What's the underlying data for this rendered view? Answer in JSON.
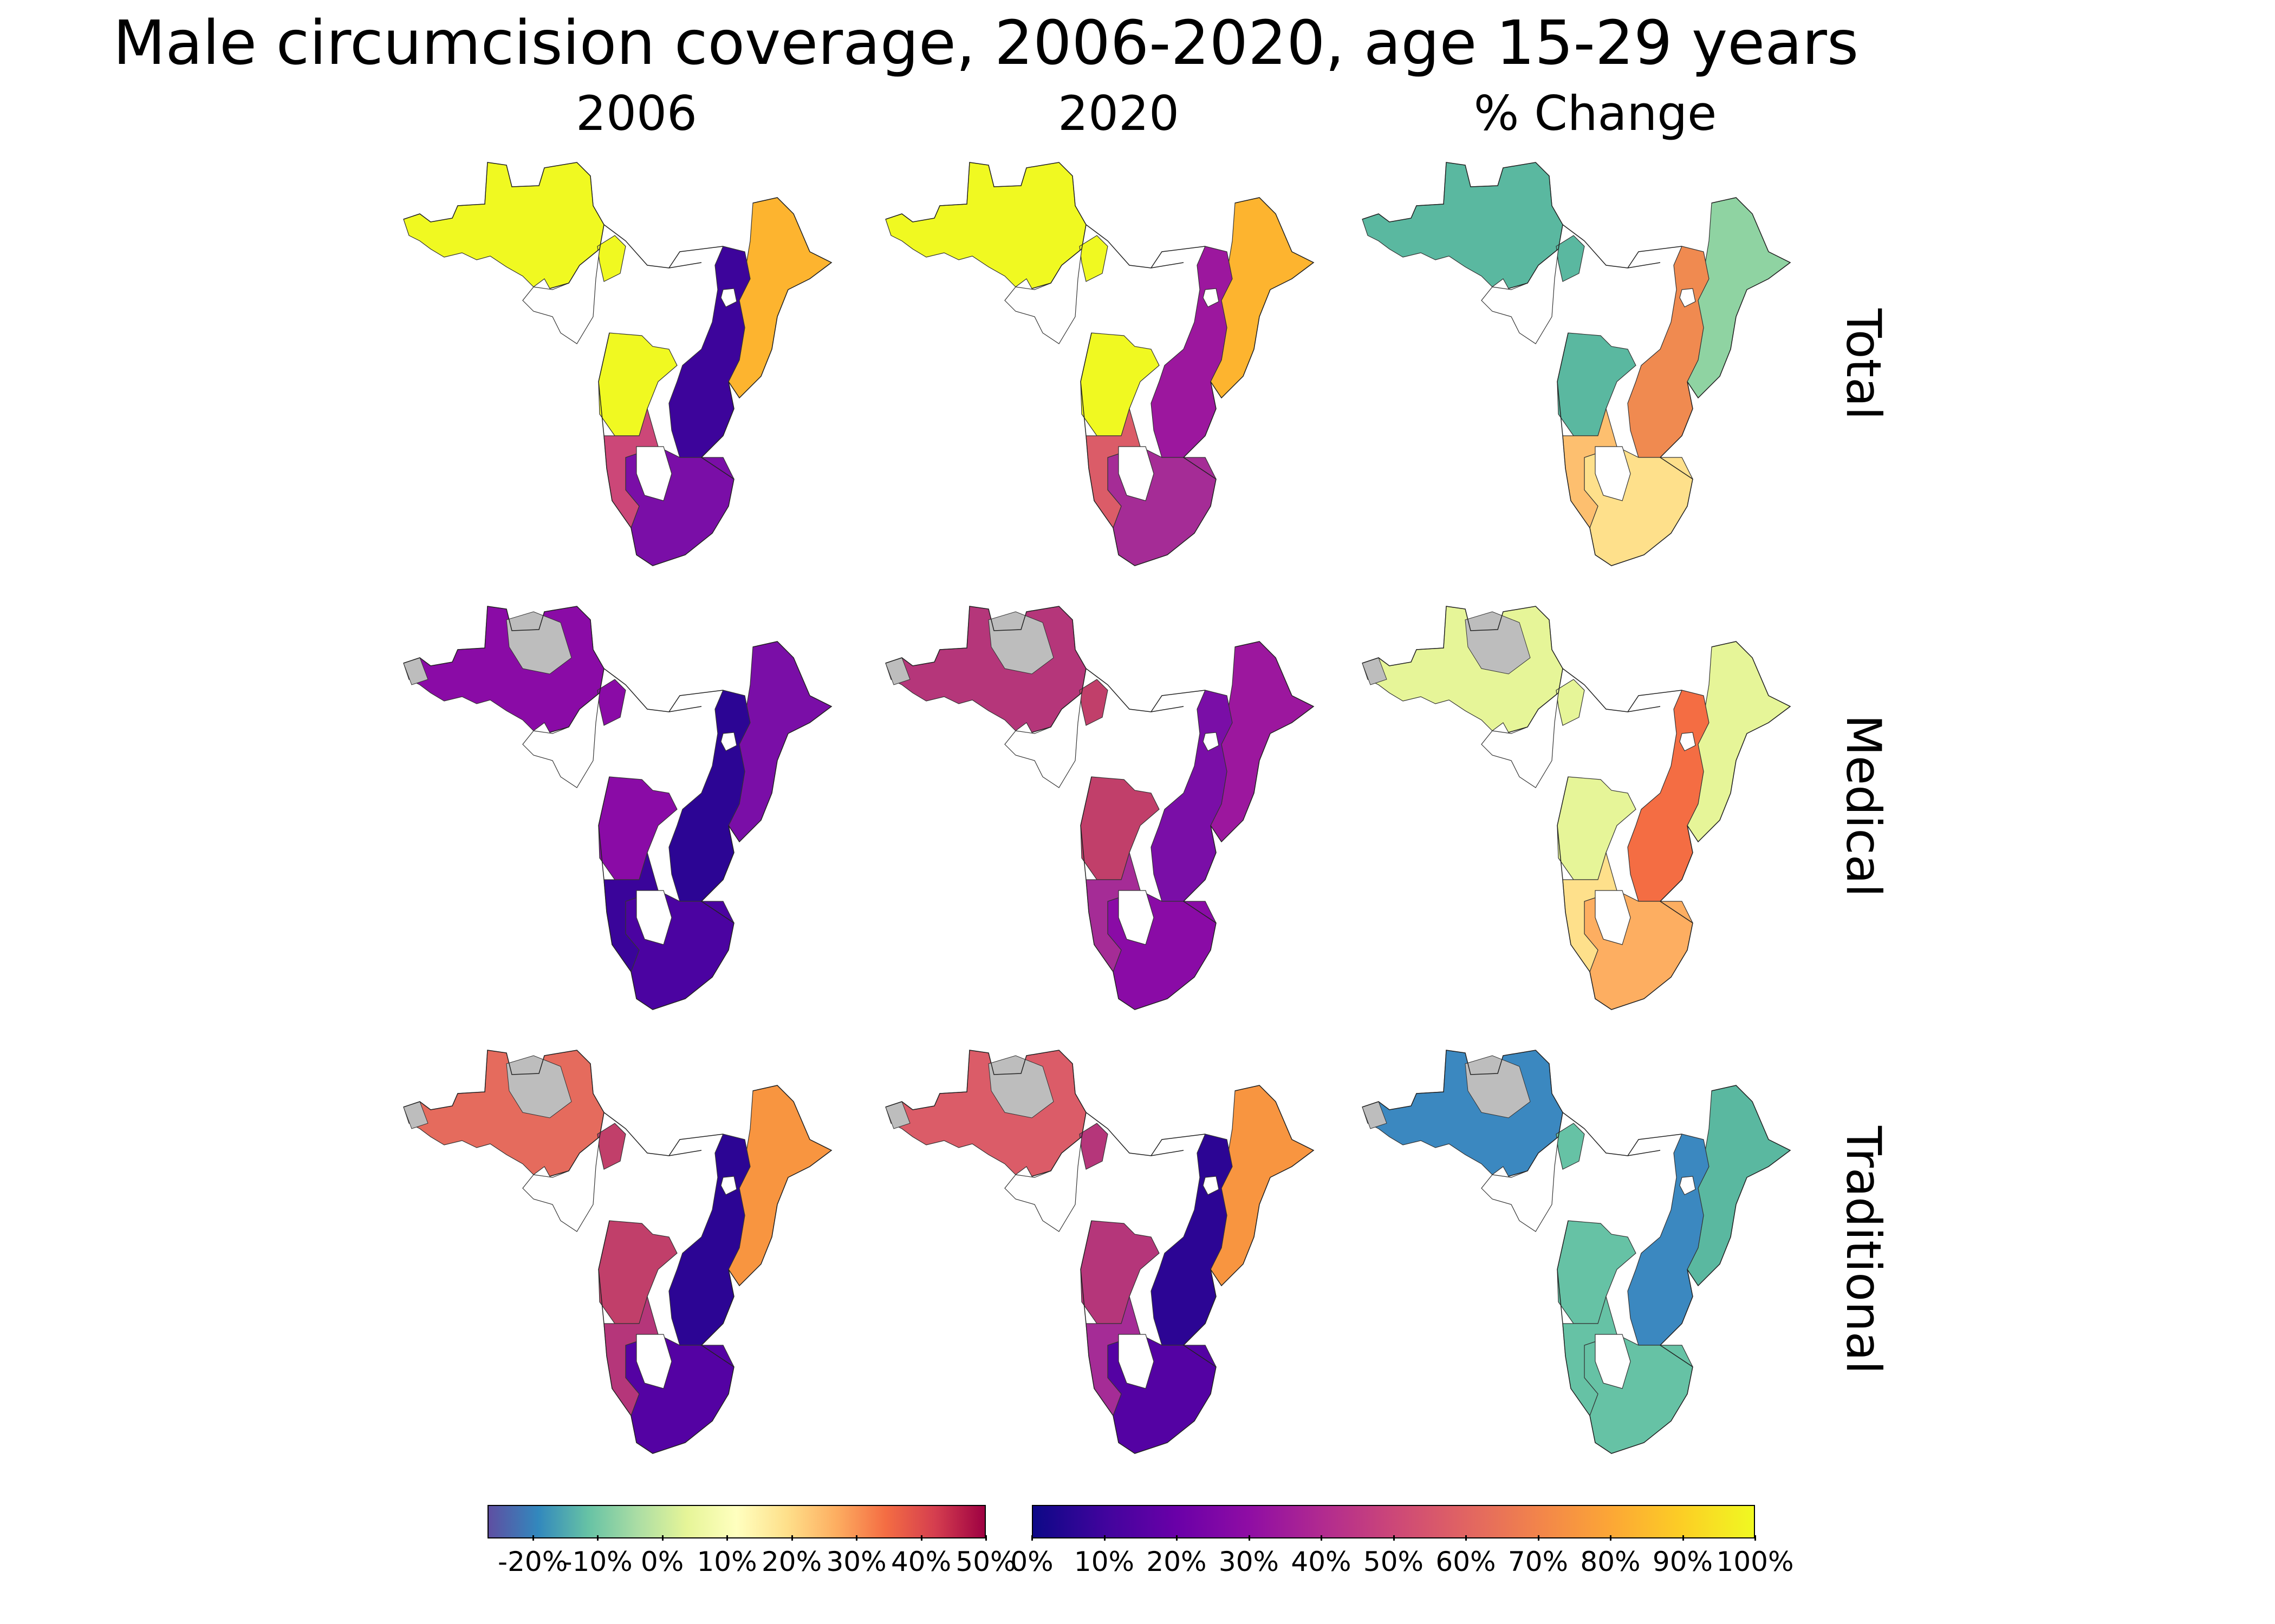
{
  "title": "Male circumcision coverage, 2006-2020, age 15-29 years",
  "columns": [
    "2006",
    "2020",
    "% Change"
  ],
  "rows": [
    "Total",
    "Medical",
    "Traditional"
  ],
  "panels": [
    {
      "row": "Total",
      "column": "2006",
      "palette": "plasma",
      "region_fill": {
        "west_africa": "#f0f921",
        "central_south": "#f0f921",
        "east_coast": "#fdb42f",
        "great_lakes_zambezi": "#3d049b",
        "southern_africa": "#7a0ea7",
        "namibia_botswana": "#cc4778",
        "no_data": "#bdbdbd"
      }
    },
    {
      "row": "Total",
      "column": "2020",
      "palette": "plasma",
      "region_fill": {
        "west_africa": "#f0f921",
        "central_south": "#f0f921",
        "east_coast": "#fdb42f",
        "great_lakes_zambezi": "#9c179e",
        "southern_africa": "#a52c96",
        "namibia_botswana": "#db5c68",
        "no_data": "#bdbdbd"
      }
    },
    {
      "row": "Total",
      "column": "% Change",
      "palette": "spectral",
      "region_fill": {
        "west_africa": "#5ab8a0",
        "central_south": "#5ab8a0",
        "east_coast": "#8fd3a2",
        "great_lakes_zambezi": "#f08a50",
        "southern_africa": "#fee08b",
        "namibia_botswana": "#fdbf6f",
        "no_data": "#bdbdbd"
      }
    },
    {
      "row": "Medical",
      "column": "2006",
      "palette": "plasma",
      "region_fill": {
        "west_africa": "#8a0ba6",
        "central_south": "#8a0ba6",
        "east_coast": "#7a0ea7",
        "great_lakes_zambezi": "#2c0594",
        "southern_africa": "#4b03a1",
        "namibia_botswana": "#3a049a",
        "no_data": "#bdbdbd"
      }
    },
    {
      "row": "Medical",
      "column": "2020",
      "palette": "plasma",
      "region_fill": {
        "west_africa": "#b5367a",
        "central_south": "#c13f6a",
        "east_coast": "#9c179e",
        "great_lakes_zambezi": "#7a0ea7",
        "southern_africa": "#8a0ba6",
        "namibia_botswana": "#a52c96",
        "no_data": "#bdbdbd"
      }
    },
    {
      "row": "Medical",
      "column": "% Change",
      "palette": "spectral",
      "region_fill": {
        "west_africa": "#e6f598",
        "central_south": "#e6f598",
        "east_coast": "#e6f598",
        "great_lakes_zambezi": "#f46d43",
        "southern_africa": "#fdae61",
        "namibia_botswana": "#fee08b",
        "no_data": "#bdbdbd"
      }
    },
    {
      "row": "Traditional",
      "column": "2006",
      "palette": "plasma",
      "region_fill": {
        "west_africa": "#e56b5d",
        "central_south": "#c13f6a",
        "east_coast": "#f89540",
        "great_lakes_zambezi": "#2c0594",
        "southern_africa": "#5402a3",
        "namibia_botswana": "#b5367a",
        "no_data": "#bdbdbd"
      }
    },
    {
      "row": "Traditional",
      "column": "2020",
      "palette": "plasma",
      "region_fill": {
        "west_africa": "#db5c68",
        "central_south": "#b5367a",
        "east_coast": "#f89540",
        "great_lakes_zambezi": "#2c0594",
        "southern_africa": "#5402a3",
        "namibia_botswana": "#a52c96",
        "no_data": "#bdbdbd"
      }
    },
    {
      "row": "Traditional",
      "column": "% Change",
      "palette": "spectral",
      "region_fill": {
        "west_africa": "#3b88c0",
        "central_south": "#66c2a5",
        "east_coast": "#5ab8a0",
        "great_lakes_zambezi": "#3b88c0",
        "southern_africa": "#66c2a5",
        "namibia_botswana": "#66c2a5",
        "no_data": "#bdbdbd"
      }
    }
  ],
  "colorbars": [
    {
      "name": "change",
      "palette": "spectral",
      "ticks": [
        "-20%",
        "-10%",
        "0%",
        "10%",
        "20%",
        "30%",
        "40%",
        "50%"
      ],
      "tick_values": [
        -20,
        -10,
        0,
        10,
        20,
        30,
        40,
        50
      ],
      "range": [
        -27,
        50
      ],
      "colors": [
        "#5e4fa2",
        "#3288bd",
        "#66c2a5",
        "#abdda4",
        "#e6f598",
        "#ffffbf",
        "#fee08b",
        "#fdae61",
        "#f46d43",
        "#d53e4f",
        "#9e0142"
      ]
    },
    {
      "name": "coverage",
      "palette": "plasma",
      "ticks": [
        "0%",
        "10%",
        "20%",
        "30%",
        "40%",
        "50%",
        "60%",
        "70%",
        "80%",
        "90%",
        "100%"
      ],
      "tick_values": [
        0,
        10,
        20,
        30,
        40,
        50,
        60,
        70,
        80,
        90,
        100
      ],
      "range": [
        0,
        100
      ],
      "colors": [
        "#0d0887",
        "#41049d",
        "#6a00a8",
        "#8f0da4",
        "#b12a90",
        "#cc4778",
        "#e16462",
        "#f2844b",
        "#fca636",
        "#fcce25",
        "#f0f921"
      ]
    }
  ]
}
